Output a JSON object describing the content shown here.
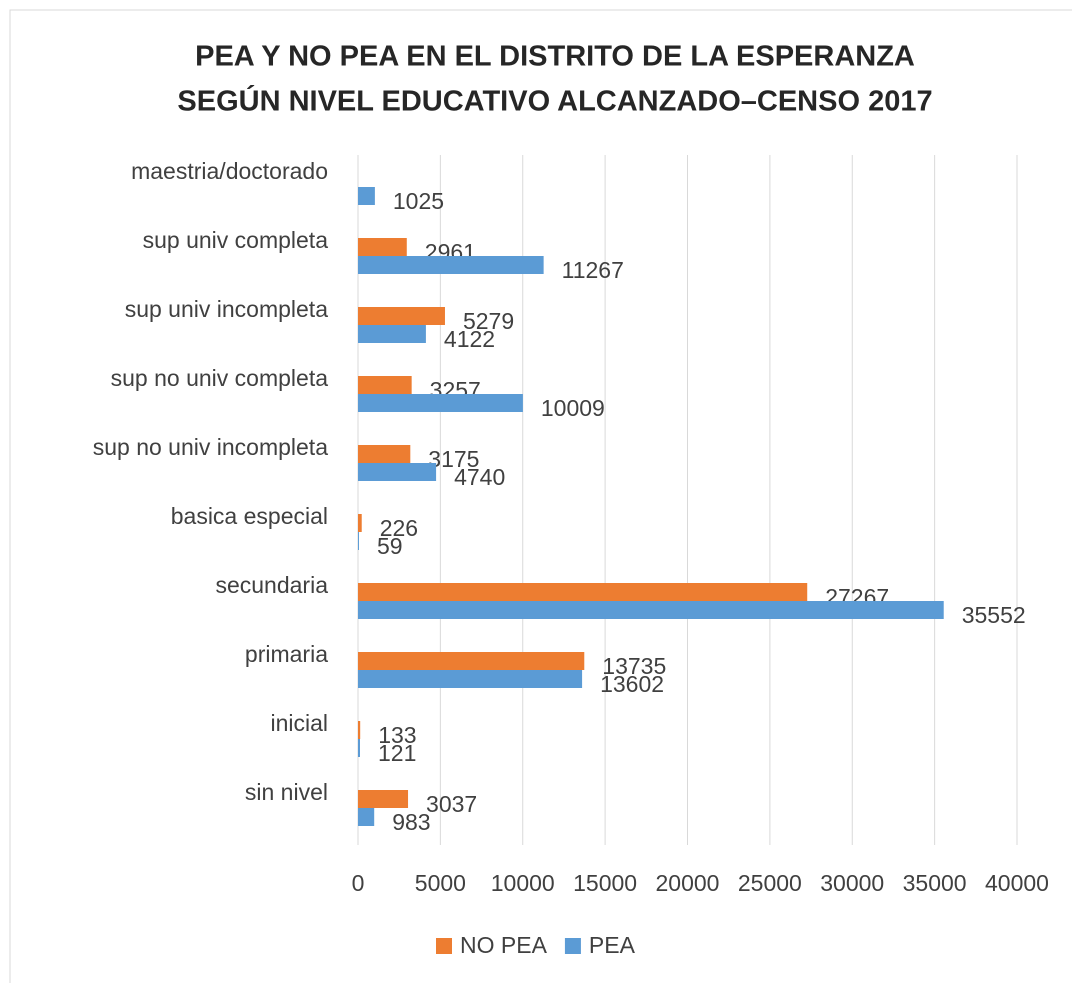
{
  "chart_data": {
    "type": "barh",
    "title_lines": [
      "PEA Y NO PEA  EN EL DISTRITO DE LA ESPERANZA",
      "SEGÚN NIVEL EDUCATIVO ALCANZADO–CENSO 2017"
    ],
    "categories": [
      "sin nivel",
      "inicial",
      "primaria",
      "secundaria",
      "basica especial",
      "sup no univ incompleta",
      "sup no univ completa",
      "sup univ incompleta",
      "sup univ completa",
      "maestria/doctorado"
    ],
    "series": [
      {
        "name": "NO PEA",
        "color": "#ed7d31",
        "values": [
          3037,
          133,
          13735,
          27267,
          226,
          3175,
          3257,
          5279,
          2961,
          null
        ]
      },
      {
        "name": "PEA",
        "color": "#5b9bd5",
        "values": [
          983,
          121,
          13602,
          35552,
          59,
          4740,
          10009,
          4122,
          11267,
          1025
        ]
      }
    ],
    "xlim": [
      0,
      40000
    ],
    "xticks": [
      0,
      5000,
      10000,
      15000,
      20000,
      25000,
      30000,
      35000,
      40000
    ],
    "grid": true,
    "legend": "bottom"
  }
}
